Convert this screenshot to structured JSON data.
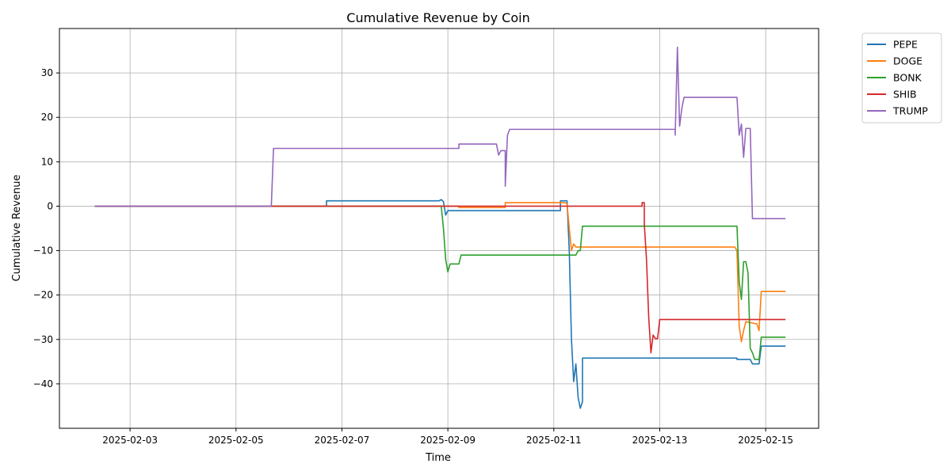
{
  "chart_data": {
    "type": "line",
    "title": "Cumulative Revenue by Coin",
    "xlabel": "Time",
    "ylabel": "Cumulative Revenue",
    "grid": true,
    "legend_position": "outside-top-right",
    "xlim": [
      "2025-02-01 16:00",
      "2025-02-16 00:00"
    ],
    "ylim": [
      -50,
      40
    ],
    "x_ticks": [
      "2025-02-03",
      "2025-02-05",
      "2025-02-07",
      "2025-02-09",
      "2025-02-11",
      "2025-02-13",
      "2025-02-15"
    ],
    "y_ticks": [
      -40,
      -30,
      -20,
      -10,
      0,
      10,
      20,
      30
    ],
    "series": [
      {
        "name": "PEPE",
        "color": "#1f77b4",
        "points": [
          [
            "2025-02-02 08:00",
            0
          ],
          [
            "2025-02-06 17:00",
            0
          ],
          [
            "2025-02-06 17:00",
            1.2
          ],
          [
            "2025-02-08 20:00",
            1.2
          ],
          [
            "2025-02-08 21:00",
            1.5
          ],
          [
            "2025-02-08 22:00",
            1.0
          ],
          [
            "2025-02-08 23:00",
            -2.0
          ],
          [
            "2025-02-09 00:00",
            -1.0
          ],
          [
            "2025-02-11 03:00",
            -1.0
          ],
          [
            "2025-02-11 03:00",
            1.2
          ],
          [
            "2025-02-11 06:00",
            1.2
          ],
          [
            "2025-02-11 07:00",
            -10
          ],
          [
            "2025-02-11 08:00",
            -30
          ],
          [
            "2025-02-11 09:00",
            -39.5
          ],
          [
            "2025-02-11 10:00",
            -35.5
          ],
          [
            "2025-02-11 11:00",
            -43
          ],
          [
            "2025-02-11 12:00",
            -45.5
          ],
          [
            "2025-02-11 13:00",
            -44
          ],
          [
            "2025-02-11 13:00",
            -34.2
          ],
          [
            "2025-02-14 11:00",
            -34.2
          ],
          [
            "2025-02-14 11:00",
            -34.5
          ],
          [
            "2025-02-14 17:00",
            -34.5
          ],
          [
            "2025-02-14 18:00",
            -35.5
          ],
          [
            "2025-02-14 21:00",
            -35.5
          ],
          [
            "2025-02-14 22:00",
            -31.5
          ],
          [
            "2025-02-15 09:00",
            -31.5
          ]
        ]
      },
      {
        "name": "DOGE",
        "color": "#ff7f0e",
        "points": [
          [
            "2025-02-02 08:00",
            0
          ],
          [
            "2025-02-09 05:00",
            0
          ],
          [
            "2025-02-09 05:00",
            -0.3
          ],
          [
            "2025-02-10 02:00",
            -0.3
          ],
          [
            "2025-02-10 02:00",
            0.8
          ],
          [
            "2025-02-11 05:00",
            0.8
          ],
          [
            "2025-02-11 06:00",
            0.5
          ],
          [
            "2025-02-11 07:00",
            -5
          ],
          [
            "2025-02-11 08:00",
            -10
          ],
          [
            "2025-02-11 09:00",
            -8.5
          ],
          [
            "2025-02-11 10:00",
            -9.2
          ],
          [
            "2025-02-14 10:00",
            -9.2
          ],
          [
            "2025-02-14 11:00",
            -10
          ],
          [
            "2025-02-14 12:00",
            -27
          ],
          [
            "2025-02-14 13:00",
            -30.5
          ],
          [
            "2025-02-14 14:00",
            -28
          ],
          [
            "2025-02-14 15:00",
            -26
          ],
          [
            "2025-02-14 20:00",
            -26.5
          ],
          [
            "2025-02-14 21:00",
            -28
          ],
          [
            "2025-02-14 22:00",
            -19.2
          ],
          [
            "2025-02-15 09:00",
            -19.2
          ]
        ]
      },
      {
        "name": "BONK",
        "color": "#2ca02c",
        "points": [
          [
            "2025-02-02 08:00",
            0
          ],
          [
            "2025-02-08 21:00",
            0
          ],
          [
            "2025-02-08 22:00",
            -5
          ],
          [
            "2025-02-08 23:00",
            -12
          ],
          [
            "2025-02-09 00:00",
            -14.8
          ],
          [
            "2025-02-09 01:00",
            -13
          ],
          [
            "2025-02-09 05:00",
            -13
          ],
          [
            "2025-02-09 06:00",
            -11
          ],
          [
            "2025-02-11 10:00",
            -11
          ],
          [
            "2025-02-11 11:00",
            -10
          ],
          [
            "2025-02-11 12:00",
            -10
          ],
          [
            "2025-02-11 13:00",
            -4.5
          ],
          [
            "2025-02-14 11:00",
            -4.5
          ],
          [
            "2025-02-14 12:00",
            -17
          ],
          [
            "2025-02-14 13:00",
            -21
          ],
          [
            "2025-02-14 14:00",
            -12.5
          ],
          [
            "2025-02-14 15:00",
            -12.5
          ],
          [
            "2025-02-14 16:00",
            -15
          ],
          [
            "2025-02-14 17:00",
            -32
          ],
          [
            "2025-02-14 18:00",
            -33
          ],
          [
            "2025-02-14 19:00",
            -34.5
          ],
          [
            "2025-02-14 21:00",
            -34.5
          ],
          [
            "2025-02-14 22:00",
            -29.5
          ],
          [
            "2025-02-15 09:00",
            -29.5
          ]
        ]
      },
      {
        "name": "SHIB",
        "color": "#d62728",
        "points": [
          [
            "2025-02-02 08:00",
            0
          ],
          [
            "2025-02-12 16:00",
            0
          ],
          [
            "2025-02-12 16:00",
            0.8
          ],
          [
            "2025-02-12 17:00",
            0.8
          ],
          [
            "2025-02-12 17:00",
            -4
          ],
          [
            "2025-02-12 18:00",
            -12
          ],
          [
            "2025-02-12 19:00",
            -25
          ],
          [
            "2025-02-12 20:00",
            -33
          ],
          [
            "2025-02-12 21:00",
            -29
          ],
          [
            "2025-02-12 22:00",
            -29.8
          ],
          [
            "2025-02-12 23:00",
            -29.8
          ],
          [
            "2025-02-13 00:00",
            -25.5
          ],
          [
            "2025-02-15 09:00",
            -25.5
          ]
        ]
      },
      {
        "name": "TRUMP",
        "color": "#9467bd",
        "points": [
          [
            "2025-02-02 08:00",
            0
          ],
          [
            "2025-02-05 16:00",
            0
          ],
          [
            "2025-02-05 17:00",
            13
          ],
          [
            "2025-02-09 05:00",
            13
          ],
          [
            "2025-02-09 05:00",
            14
          ],
          [
            "2025-02-09 22:00",
            14
          ],
          [
            "2025-02-09 23:00",
            11.5
          ],
          [
            "2025-02-10 00:00",
            12.5
          ],
          [
            "2025-02-10 02:00",
            12.5
          ],
          [
            "2025-02-10 02:00",
            4.5
          ],
          [
            "2025-02-10 03:00",
            16
          ],
          [
            "2025-02-10 04:00",
            17.3
          ],
          [
            "2025-02-13 07:00",
            17.3
          ],
          [
            "2025-02-13 07:00",
            16
          ],
          [
            "2025-02-13 08:00",
            35.8
          ],
          [
            "2025-02-13 09:00",
            18
          ],
          [
            "2025-02-13 10:00",
            22
          ],
          [
            "2025-02-13 11:00",
            24.5
          ],
          [
            "2025-02-14 11:00",
            24.5
          ],
          [
            "2025-02-14 12:00",
            16
          ],
          [
            "2025-02-14 13:00",
            18.5
          ],
          [
            "2025-02-14 14:00",
            11
          ],
          [
            "2025-02-14 15:00",
            17.5
          ],
          [
            "2025-02-14 17:00",
            17.5
          ],
          [
            "2025-02-14 18:00",
            -2.8
          ],
          [
            "2025-02-15 09:00",
            -2.8
          ]
        ]
      }
    ]
  }
}
